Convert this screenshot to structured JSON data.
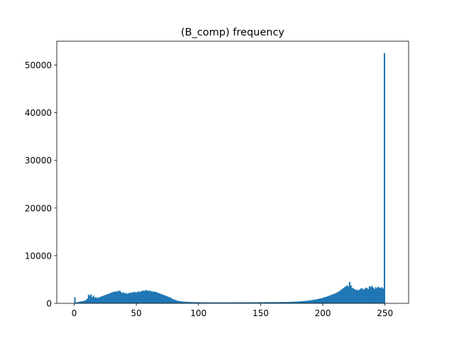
{
  "chart_data": {
    "type": "bar",
    "title": "(B_comp) frequency",
    "xlabel": "",
    "ylabel": "",
    "xlim": [
      -14,
      269
    ],
    "ylim": [
      0,
      55000
    ],
    "x_ticks": [
      0,
      50,
      100,
      150,
      200,
      250
    ],
    "y_ticks": [
      0,
      10000,
      20000,
      30000,
      40000,
      50000
    ],
    "color": "#1f77b4",
    "grid": false,
    "bin_width": 1,
    "bin_start": 0,
    "values": [
      1300,
      200,
      250,
      300,
      350,
      400,
      450,
      500,
      600,
      700,
      1000,
      1800,
      1600,
      1900,
      1300,
      1600,
      1200,
      1300,
      1100,
      1200,
      1300,
      1400,
      1500,
      1600,
      1700,
      1800,
      1900,
      2000,
      2100,
      2200,
      2300,
      2400,
      2500,
      2400,
      2600,
      2500,
      2700,
      2400,
      2200,
      2300,
      2100,
      2200,
      2000,
      2100,
      2200,
      2300,
      2200,
      2400,
      2300,
      2400,
      2300,
      2500,
      2400,
      2500,
      2600,
      2700,
      2600,
      2800,
      2700,
      2600,
      2700,
      2500,
      2600,
      2400,
      2500,
      2400,
      2300,
      2200,
      2100,
      2000,
      1900,
      1800,
      1700,
      1600,
      1500,
      1400,
      1300,
      1200,
      1000,
      900,
      800,
      700,
      600,
      520,
      480,
      440,
      400,
      380,
      360,
      340,
      320,
      300,
      290,
      280,
      270,
      260,
      250,
      250,
      240,
      240,
      230,
      230,
      220,
      220,
      220,
      210,
      210,
      210,
      210,
      210,
      210,
      210,
      210,
      210,
      210,
      210,
      210,
      210,
      210,
      210,
      210,
      210,
      210,
      210,
      210,
      210,
      210,
      210,
      210,
      210,
      220,
      220,
      220,
      220,
      220,
      220,
      220,
      220,
      220,
      230,
      230,
      230,
      230,
      230,
      230,
      230,
      230,
      240,
      240,
      240,
      240,
      240,
      240,
      250,
      250,
      250,
      250,
      260,
      260,
      260,
      260,
      270,
      270,
      270,
      270,
      280,
      280,
      280,
      280,
      290,
      290,
      300,
      300,
      310,
      320,
      330,
      340,
      350,
      360,
      380,
      400,
      420,
      440,
      460,
      480,
      500,
      530,
      560,
      590,
      620,
      660,
      700,
      740,
      780,
      830,
      880,
      940,
      1000,
      1050,
      1100,
      1200,
      1300,
      1350,
      1450,
      1550,
      1650,
      1750,
      1850,
      1950,
      2050,
      2150,
      2300,
      2450,
      2600,
      2800,
      3000,
      3200,
      3400,
      3600,
      3800,
      3500,
      4500,
      3800,
      3300,
      3100,
      3000,
      2800,
      2900,
      2700,
      2900,
      3100,
      3200,
      2900,
      3000,
      3300,
      3200,
      3000,
      3600,
      3400,
      3700,
      3300,
      3000,
      3400,
      3200,
      3500,
      3300,
      3200,
      3400,
      3100,
      52500
    ]
  }
}
